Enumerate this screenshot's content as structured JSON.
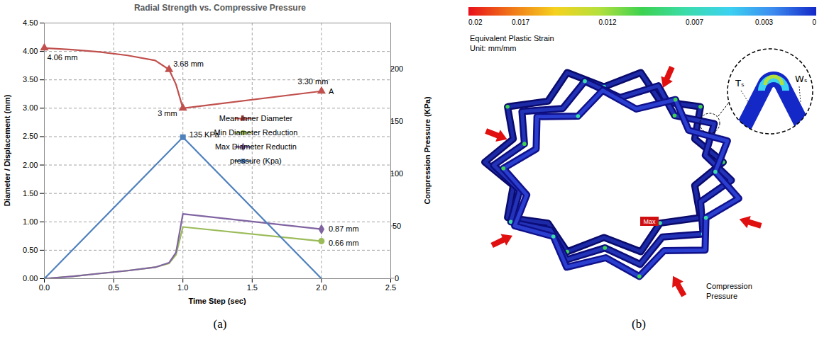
{
  "chart_data": {
    "type": "line",
    "title": "Radial Strength vs. Compressive Pressure",
    "panel_label": "(a)",
    "x_label": "Time Step (sec)",
    "y_label": "Diameter / Displacement (mm)",
    "y2_label": "Compression Pressure (KPa)",
    "xlim": [
      0,
      2.5
    ],
    "xticks": [
      {
        "value": 0,
        "label": "0.0"
      },
      {
        "value": 0.5,
        "label": "0.5"
      },
      {
        "value": 1,
        "label": "1.0"
      },
      {
        "value": 1.5,
        "label": "1.5"
      },
      {
        "value": 2,
        "label": "2.0"
      },
      {
        "value": 2.5,
        "label": "2.5"
      }
    ],
    "ylim": [
      0,
      4.5
    ],
    "yticks": [
      {
        "value": 0,
        "label": "0.00"
      },
      {
        "value": 0.5,
        "label": "0.50"
      },
      {
        "value": 1,
        "label": "1.00"
      },
      {
        "value": 1.5,
        "label": "1.50"
      },
      {
        "value": 2,
        "label": "2.00"
      },
      {
        "value": 2.5,
        "label": "2.50"
      },
      {
        "value": 3,
        "label": "3.00"
      },
      {
        "value": 3.5,
        "label": "3.50"
      },
      {
        "value": 4,
        "label": "4.00"
      },
      {
        "value": 4.5,
        "label": "4.50"
      }
    ],
    "y2lim": [
      0,
      244
    ],
    "y2ticks": [
      0,
      50,
      100,
      150,
      200
    ],
    "grid": true,
    "legend": "right",
    "series": [
      {
        "name": "Mean Inner Diameter",
        "color": "#c0504d",
        "marker": "triangle",
        "x": [
          0,
          0.2,
          0.4,
          0.6,
          0.8,
          0.9,
          0.95,
          1.0,
          2.0
        ],
        "values": [
          4.06,
          4.03,
          3.99,
          3.93,
          3.84,
          3.68,
          3.42,
          3.0,
          3.3
        ]
      },
      {
        "name": "Min Diameter Reduction",
        "color": "#9bbb59",
        "marker": "circle",
        "x": [
          0,
          0.2,
          0.4,
          0.6,
          0.8,
          0.9,
          0.95,
          1.0,
          2.0
        ],
        "values": [
          0,
          0.04,
          0.09,
          0.14,
          0.2,
          0.27,
          0.42,
          0.91,
          0.66
        ]
      },
      {
        "name": "Max Diameter Reductin",
        "color": "#8064a2",
        "marker": "diamond",
        "x": [
          0,
          0.2,
          0.4,
          0.6,
          0.8,
          0.9,
          0.95,
          1.0,
          2.0
        ],
        "values": [
          0,
          0.04,
          0.09,
          0.14,
          0.2,
          0.28,
          0.46,
          1.14,
          0.87
        ]
      },
      {
        "name": "pressure (Kpa)",
        "color": "#4f81bd",
        "marker": "square",
        "axis": "y2",
        "x": [
          0,
          1,
          2
        ],
        "values": [
          0,
          135,
          0
        ]
      }
    ],
    "annotations": [
      {
        "series": "Mean Inner Diameter",
        "x": 0,
        "y": 4.06,
        "text": "4.06 mm"
      },
      {
        "series": "Mean Inner Diameter",
        "x": 0.9,
        "y": 3.68,
        "text": "3.68 mm"
      },
      {
        "series": "Mean Inner Diameter",
        "x": 1.0,
        "y": 3.0,
        "text": "3 mm"
      },
      {
        "series": "Mean Inner Diameter",
        "x": 2.0,
        "y": 3.3,
        "text": "3.30 mm"
      },
      {
        "series": "Mean Inner Diameter",
        "x": 2.0,
        "y": 3.3,
        "text": "A"
      },
      {
        "series": "pressure (Kpa)",
        "x": 1.0,
        "y": 135,
        "text": "135 KPa"
      },
      {
        "series": "Max Diameter Reductin",
        "x": 2.0,
        "y": 0.87,
        "text": "0.87 mm"
      },
      {
        "series": "Min Diameter Reduction",
        "x": 2.0,
        "y": 0.66,
        "text": "0.66 mm"
      }
    ]
  },
  "contour_plot": {
    "type": "contour",
    "panel_label": "(b)",
    "colorbar": {
      "title": "Equivalent Plastic Strain",
      "unit": "Unit: mm/mm",
      "range": [
        0.02,
        0
      ],
      "ticks": [
        0.02,
        0.017,
        0.012,
        0.007,
        0.003,
        0
      ],
      "colors": [
        "#e8101a",
        "#f07818",
        "#f5d21e",
        "#b4e03c",
        "#3cd250",
        "#3cdcaa",
        "#3cd2f0",
        "#3c8cf0",
        "#1428c8"
      ]
    },
    "labels": [
      "Tₛ",
      "Wₛ"
    ],
    "arrow_label": "Compression Pressure",
    "max_label": "Max"
  }
}
